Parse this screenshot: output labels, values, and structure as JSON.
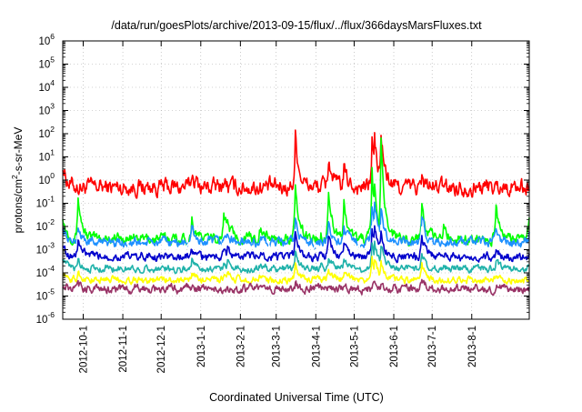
{
  "chart_data": {
    "type": "line",
    "title": "/data/run/goesPlots/archive/2013-09-15/flux/../flux/366daysMarsFluxes.txt",
    "xlabel": "Coordinated Universal Time (UTC)",
    "ylabel": {
      "base": "protons/cm",
      "sup": "2",
      "rest": "-s-sr-MeV"
    },
    "yscale": "log",
    "ylim": [
      -6,
      6
    ],
    "grid": true,
    "legend": "none",
    "x_range": [
      "2012-09-15",
      "2013-09-15"
    ],
    "x_ticks": [
      {
        "label": "2012-10-1",
        "date": "2012-10-01"
      },
      {
        "label": "2012-11-1",
        "date": "2012-11-01"
      },
      {
        "label": "2012-12-1",
        "date": "2012-12-01"
      },
      {
        "label": "2013-1-1",
        "date": "2013-01-01"
      },
      {
        "label": "2013-2-1",
        "date": "2013-02-01"
      },
      {
        "label": "2013-3-1",
        "date": "2013-03-01"
      },
      {
        "label": "2013-4-1",
        "date": "2013-04-01"
      },
      {
        "label": "2013-5-1",
        "date": "2013-05-01"
      },
      {
        "label": "2013-6-1",
        "date": "2013-06-01"
      },
      {
        "label": "2013-7-1",
        "date": "2013-07-01"
      },
      {
        "label": "2013-8-1",
        "date": "2013-08-01"
      }
    ],
    "y_ticks": [
      {
        "base": "10",
        "exp": "-6"
      },
      {
        "base": "10",
        "exp": "-5"
      },
      {
        "base": "10",
        "exp": "-4"
      },
      {
        "base": "10",
        "exp": "-3"
      },
      {
        "base": "10",
        "exp": "-2"
      },
      {
        "base": "10",
        "exp": "-1"
      },
      {
        "base": "10",
        "exp": "0"
      },
      {
        "base": "10",
        "exp": "1"
      },
      {
        "base": "10",
        "exp": "2"
      },
      {
        "base": "10",
        "exp": "3"
      },
      {
        "base": "10",
        "exp": "4"
      },
      {
        "base": "10",
        "exp": "5"
      },
      {
        "base": "10",
        "exp": "6"
      }
    ],
    "series": [
      {
        "color": "#ff0000",
        "baseline": 0.5,
        "noise_decades": 0.7,
        "events": [
          [
            "2012-09-15",
            5
          ],
          [
            "2012-09-27",
            0.3
          ],
          [
            "2012-10-18",
            0.3
          ],
          [
            "2012-11-03",
            0.1
          ],
          [
            "2012-12-25",
            2
          ],
          [
            "2013-01-19",
            1
          ],
          [
            "2013-01-22",
            0.5
          ],
          [
            "2013-02-16",
            0.5
          ],
          [
            "2013-03-16",
            100
          ],
          [
            "2013-04-05",
            0.6
          ],
          [
            "2013-04-11",
            10
          ],
          [
            "2013-04-23",
            3
          ],
          [
            "2013-05-15",
            60
          ],
          [
            "2013-05-17",
            60
          ],
          [
            "2013-05-22",
            100
          ],
          [
            "2013-06-23",
            1.1
          ],
          [
            "2013-07-10",
            0.3
          ],
          [
            "2013-08-20",
            0.3
          ],
          [
            "2013-09-15",
            0.2
          ]
        ]
      },
      {
        "color": "#00ff00",
        "baseline": 0.003,
        "noise_decades": 0.45,
        "events": [
          [
            "2012-09-15",
            0.03
          ],
          [
            "2012-09-27",
            0.2
          ],
          [
            "2012-10-18",
            0.004
          ],
          [
            "2012-11-03",
            0.002
          ],
          [
            "2012-12-25",
            0.02
          ],
          [
            "2013-01-19",
            0.05
          ],
          [
            "2013-01-22",
            0.02
          ],
          [
            "2013-02-16",
            0.01
          ],
          [
            "2013-03-16",
            0.3
          ],
          [
            "2013-04-05",
            0.005
          ],
          [
            "2013-04-11",
            0.4
          ],
          [
            "2013-04-23",
            0.1
          ],
          [
            "2013-05-15",
            2
          ],
          [
            "2013-05-17",
            0.5
          ],
          [
            "2013-05-22",
            60
          ],
          [
            "2013-06-23",
            0.1
          ],
          [
            "2013-07-10",
            0.01
          ],
          [
            "2013-08-20",
            0.05
          ],
          [
            "2013-09-15",
            0.03
          ]
        ]
      },
      {
        "color": "#1e90ff",
        "baseline": 0.002,
        "noise_decades": 0.4,
        "events": [
          [
            "2012-09-15",
            0.01
          ],
          [
            "2012-09-27",
            0.01
          ],
          [
            "2012-10-18",
            0.003
          ],
          [
            "2012-11-03",
            0.002
          ],
          [
            "2012-12-25",
            0.008
          ],
          [
            "2013-01-19",
            0.004
          ],
          [
            "2013-01-22",
            0.005
          ],
          [
            "2013-02-16",
            0.003
          ],
          [
            "2013-03-16",
            0.02
          ],
          [
            "2013-04-05",
            0.003
          ],
          [
            "2013-04-11",
            0.01
          ],
          [
            "2013-04-23",
            0.01
          ],
          [
            "2013-05-15",
            0.05
          ],
          [
            "2013-05-17",
            0.1
          ],
          [
            "2013-05-22",
            0.06
          ],
          [
            "2013-06-23",
            0.03
          ],
          [
            "2013-07-10",
            0.002
          ],
          [
            "2013-08-20",
            0.008
          ],
          [
            "2013-09-15",
            0.005
          ]
        ]
      },
      {
        "color": "#ffffff",
        "baseline": 0.001,
        "noise_decades": 0.35,
        "events": [
          [
            "2012-09-15",
            0.004
          ],
          [
            "2012-09-27",
            0.005
          ],
          [
            "2012-10-18",
            0.001
          ],
          [
            "2012-11-03",
            0.001
          ],
          [
            "2012-12-25",
            0.002
          ],
          [
            "2013-01-19",
            0.002
          ],
          [
            "2013-01-22",
            0.002
          ],
          [
            "2013-02-16",
            0.002
          ],
          [
            "2013-03-16",
            0.006
          ],
          [
            "2013-04-05",
            0.001
          ],
          [
            "2013-04-11",
            0.004
          ],
          [
            "2013-04-23",
            0.003
          ],
          [
            "2013-05-15",
            0.01
          ],
          [
            "2013-05-17",
            0.02
          ],
          [
            "2013-05-22",
            0.01
          ],
          [
            "2013-06-23",
            0.008
          ],
          [
            "2013-07-10",
            0.001
          ],
          [
            "2013-08-20",
            0.003
          ],
          [
            "2013-09-15",
            0.002
          ]
        ]
      },
      {
        "color": "#0000cc",
        "baseline": 0.0005,
        "noise_decades": 0.35,
        "events": [
          [
            "2012-09-15",
            0.002
          ],
          [
            "2012-09-27",
            0.003
          ],
          [
            "2012-10-18",
            0.0006
          ],
          [
            "2012-11-03",
            0.0005
          ],
          [
            "2012-12-25",
            0.001
          ],
          [
            "2013-01-19",
            0.001
          ],
          [
            "2013-01-22",
            0.001
          ],
          [
            "2013-02-16",
            0.0008
          ],
          [
            "2013-03-16",
            0.004
          ],
          [
            "2013-04-05",
            0.0006
          ],
          [
            "2013-04-11",
            0.003
          ],
          [
            "2013-04-23",
            0.002
          ],
          [
            "2013-05-15",
            0.008
          ],
          [
            "2013-05-17",
            0.01
          ],
          [
            "2013-05-22",
            0.005
          ],
          [
            "2013-06-23",
            0.004
          ],
          [
            "2013-07-10",
            0.0006
          ],
          [
            "2013-08-20",
            0.001
          ],
          [
            "2013-09-15",
            0.0008
          ]
        ]
      },
      {
        "color": "#20b2aa",
        "baseline": 0.00015,
        "noise_decades": 0.3,
        "events": [
          [
            "2012-09-15",
            0.0005
          ],
          [
            "2012-09-27",
            0.0004
          ],
          [
            "2012-10-18",
            0.0002
          ],
          [
            "2012-11-03",
            0.00015
          ],
          [
            "2012-12-25",
            0.0004
          ],
          [
            "2013-01-19",
            0.0003
          ],
          [
            "2013-01-22",
            0.0003
          ],
          [
            "2013-02-16",
            0.0002
          ],
          [
            "2013-03-16",
            0.0008
          ],
          [
            "2013-04-05",
            0.0002
          ],
          [
            "2013-04-11",
            0.0005
          ],
          [
            "2013-04-23",
            0.0004
          ],
          [
            "2013-05-15",
            0.002
          ],
          [
            "2013-05-17",
            0.003
          ],
          [
            "2013-05-22",
            0.002
          ],
          [
            "2013-06-23",
            0.0008
          ],
          [
            "2013-07-10",
            0.0002
          ],
          [
            "2013-08-20",
            0.0003
          ],
          [
            "2013-09-15",
            0.00025
          ]
        ]
      },
      {
        "color": "#ffff00",
        "baseline": 5e-05,
        "noise_decades": 0.3,
        "events": [
          [
            "2012-09-15",
            0.0001
          ],
          [
            "2012-09-27",
            0.0001
          ],
          [
            "2012-10-18",
            6e-05
          ],
          [
            "2012-11-03",
            5e-05
          ],
          [
            "2012-12-25",
            0.0001
          ],
          [
            "2013-01-19",
            8e-05
          ],
          [
            "2013-01-22",
            8e-05
          ],
          [
            "2013-02-16",
            6e-05
          ],
          [
            "2013-03-16",
            0.0002
          ],
          [
            "2013-04-05",
            6e-05
          ],
          [
            "2013-04-11",
            0.00015
          ],
          [
            "2013-04-23",
            0.0001
          ],
          [
            "2013-05-15",
            0.0004
          ],
          [
            "2013-05-17",
            0.0005
          ],
          [
            "2013-05-22",
            0.0003
          ],
          [
            "2013-06-23",
            0.0002
          ],
          [
            "2013-07-10",
            5e-05
          ],
          [
            "2013-08-20",
            0.0001
          ],
          [
            "2013-09-15",
            8e-05
          ]
        ]
      },
      {
        "color": "#993366",
        "baseline": 2e-05,
        "noise_decades": 0.35,
        "events": [
          [
            "2012-09-15",
            3e-05
          ],
          [
            "2012-09-27",
            3e-05
          ],
          [
            "2012-10-18",
            2e-05
          ],
          [
            "2012-11-03",
            2e-05
          ],
          [
            "2012-12-25",
            3e-05
          ],
          [
            "2013-01-19",
            2e-05
          ],
          [
            "2013-01-22",
            2e-05
          ],
          [
            "2013-02-16",
            2e-05
          ],
          [
            "2013-03-16",
            4e-05
          ],
          [
            "2013-04-05",
            2e-05
          ],
          [
            "2013-04-11",
            3e-05
          ],
          [
            "2013-04-23",
            3e-05
          ],
          [
            "2013-05-15",
            2e-06
          ],
          [
            "2013-05-17",
            5e-05
          ],
          [
            "2013-05-22",
            5e-05
          ],
          [
            "2013-06-23",
            4e-05
          ],
          [
            "2013-07-10",
            2e-05
          ],
          [
            "2013-08-20",
            3e-05
          ],
          [
            "2013-09-15",
            2e-05
          ]
        ]
      }
    ]
  }
}
